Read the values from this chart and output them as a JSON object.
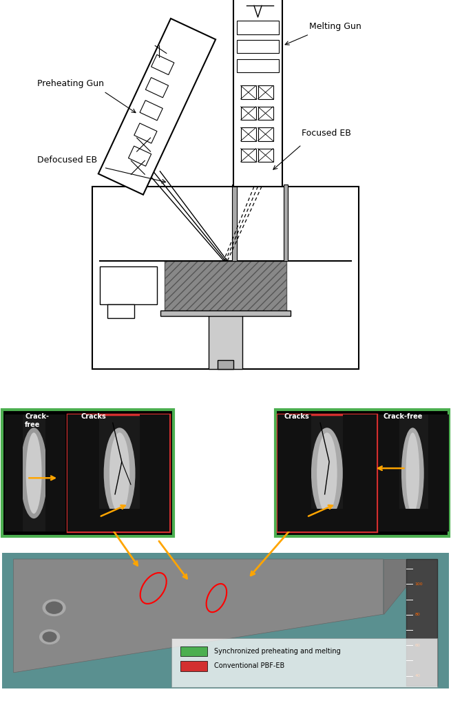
{
  "fig_width": 6.55,
  "fig_height": 10.24,
  "bg_color": "#ffffff",
  "top_panel": {
    "labels": {
      "preheating_gun": "Preheating Gun",
      "melting_gun": "Melting Gun",
      "defocused_eb": "Defocused EB",
      "focused_eb": "Focused EB"
    }
  },
  "bottom_panel": {
    "left_green_label_top": "Crack-\nfree",
    "left_red_label_top": "Cracks",
    "right_red_label_top": "Cracks",
    "right_green_label_top": "Crack-free",
    "legend_green": "Synchronized preheating and melting",
    "legend_red": "Conventional PBF-EB",
    "green_color": "#4caf50",
    "red_color": "#d32f2f",
    "arrow_color": "#ffa500",
    "photo_teal": "#4a8a8a"
  }
}
